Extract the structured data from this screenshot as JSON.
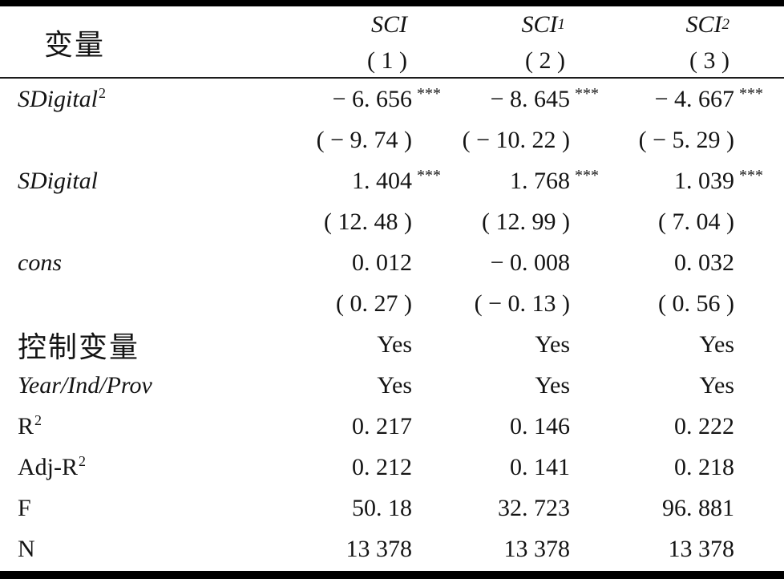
{
  "colors": {
    "rule": "#000000",
    "text": "#141414",
    "background": "#ffffff"
  },
  "header": {
    "var_label": "变量",
    "columns": [
      {
        "name": "SCI",
        "sub": "",
        "model": "( 1 )"
      },
      {
        "name": "SCI",
        "sub": "1",
        "model": "( 2 )"
      },
      {
        "name": "SCI",
        "sub": "2",
        "model": "( 3 )"
      }
    ]
  },
  "rows": [
    {
      "label": "SDigital",
      "label_sup": "2",
      "values": [
        "− 6. 656",
        "− 8. 645",
        "− 4. 667"
      ],
      "stars": [
        "***",
        "***",
        "***"
      ]
    },
    {
      "label": "",
      "values": [
        "( − 9. 74 )",
        "( − 10. 22 )",
        "( − 5. 29 )"
      ]
    },
    {
      "label": "SDigital",
      "values": [
        "1. 404",
        "1. 768",
        "1. 039"
      ],
      "stars": [
        "***",
        "***",
        "***"
      ]
    },
    {
      "label": "",
      "values": [
        "( 12. 48 )",
        "( 12. 99 )",
        "( 7. 04 )"
      ]
    },
    {
      "label": "cons",
      "values": [
        "0. 012",
        "− 0. 008",
        "0. 032"
      ]
    },
    {
      "label": "",
      "values": [
        "( 0. 27 )",
        "( − 0. 13 )",
        "( 0. 56 )"
      ]
    },
    {
      "label": "控制变量",
      "values": [
        "Yes",
        "Yes",
        "Yes"
      ]
    },
    {
      "label": "Year/Ind/Prov",
      "values": [
        "Yes",
        "Yes",
        "Yes"
      ]
    },
    {
      "label": "R",
      "label_sup": "2",
      "values": [
        "0. 217",
        "0. 146",
        "0. 222"
      ]
    },
    {
      "label": "Adj-R",
      "label_sup": "2",
      "values": [
        "0. 212",
        "0. 141",
        "0. 218"
      ]
    },
    {
      "label": "F",
      "values": [
        "50. 18",
        "32. 723",
        "96. 881"
      ]
    },
    {
      "label": "N",
      "values": [
        "13 378",
        "13 378",
        "13 378"
      ]
    }
  ]
}
